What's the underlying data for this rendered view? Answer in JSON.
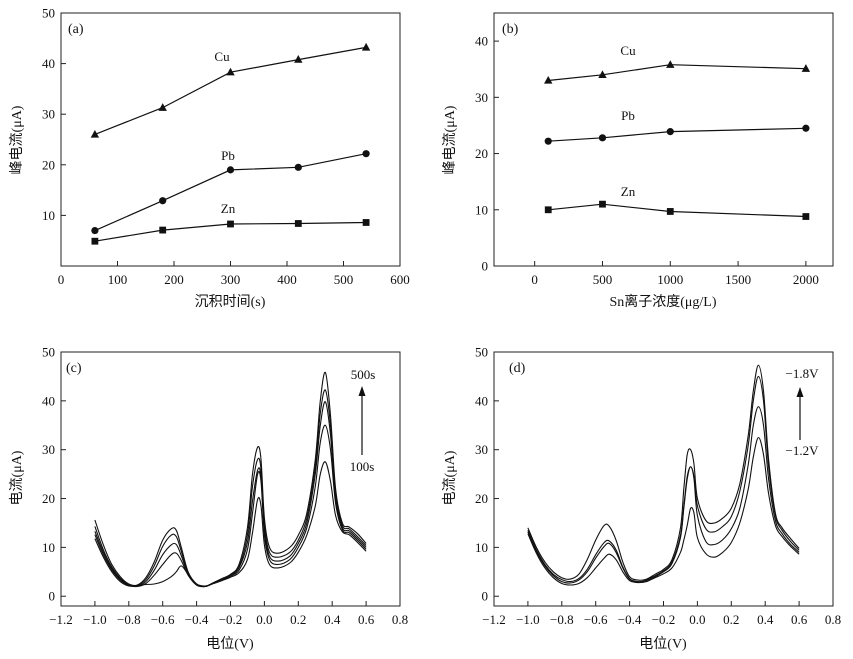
{
  "chart_data": [
    {
      "id": "a",
      "type": "line",
      "panel_label": "(a)",
      "xlabel": "沉积时间(s)",
      "ylabel": "峰电流(μA)",
      "xlim": [
        0,
        600
      ],
      "ylim": [
        0,
        50
      ],
      "x_ticks": [
        0,
        100,
        200,
        300,
        400,
        500,
        600
      ],
      "y_ticks": [
        10,
        20,
        30,
        40,
        50
      ],
      "series": [
        {
          "name": "Cu",
          "marker": "triangle",
          "x": [
            60,
            180,
            300,
            420,
            540
          ],
          "values": [
            26.0,
            31.3,
            38.3,
            40.8,
            43.2
          ]
        },
        {
          "name": "Pb",
          "marker": "circle",
          "x": [
            60,
            180,
            300,
            420,
            540
          ],
          "values": [
            7.0,
            12.9,
            19.0,
            19.5,
            22.2
          ]
        },
        {
          "name": "Zn",
          "marker": "square",
          "x": [
            60,
            180,
            300,
            420,
            540
          ],
          "values": [
            4.9,
            7.1,
            8.3,
            8.4,
            8.6
          ]
        }
      ]
    },
    {
      "id": "b",
      "type": "line",
      "panel_label": "(b)",
      "xlabel": "Sn离子浓度(μg/L)",
      "ylabel": "峰电流(μA)",
      "xlim": [
        -300,
        2200
      ],
      "ylim": [
        0,
        45
      ],
      "x_ticks": [
        0,
        500,
        1000,
        1500,
        2000
      ],
      "y_ticks": [
        0,
        10,
        20,
        30,
        40
      ],
      "series": [
        {
          "name": "Cu",
          "marker": "triangle",
          "x": [
            100,
            500,
            1000,
            2000
          ],
          "values": [
            33.0,
            34.0,
            35.8,
            35.1
          ]
        },
        {
          "name": "Pb",
          "marker": "circle",
          "x": [
            100,
            500,
            1000,
            2000
          ],
          "values": [
            22.2,
            22.8,
            23.9,
            24.5
          ]
        },
        {
          "name": "Zn",
          "marker": "square",
          "x": [
            100,
            500,
            1000,
            2000
          ],
          "values": [
            10.0,
            11.0,
            9.7,
            8.8
          ]
        }
      ]
    },
    {
      "id": "c",
      "type": "line",
      "panel_label": "(c)",
      "xlabel": "电位(V)",
      "ylabel": "电流(μA)",
      "xlim": [
        -1.2,
        0.8
      ],
      "ylim": [
        -2,
        50
      ],
      "x_ticks": [
        -1.2,
        -1.0,
        -0.8,
        -0.6,
        -0.4,
        -0.2,
        0.0,
        0.2,
        0.4,
        0.6,
        0.8
      ],
      "y_ticks": [
        0,
        10,
        20,
        30,
        40,
        50
      ],
      "annotations": {
        "top": "500s",
        "bottom": "100s"
      },
      "x": [
        -1.0,
        -0.95,
        -0.9,
        -0.85,
        -0.8,
        -0.75,
        -0.7,
        -0.65,
        -0.6,
        -0.55,
        -0.52,
        -0.49,
        -0.45,
        -0.4,
        -0.35,
        -0.3,
        -0.25,
        -0.2,
        -0.15,
        -0.1,
        -0.07,
        -0.04,
        -0.02,
        0.0,
        0.03,
        0.08,
        0.15,
        0.2,
        0.25,
        0.3,
        0.33,
        0.36,
        0.39,
        0.42,
        0.46,
        0.5,
        0.55,
        0.6
      ],
      "series": [
        {
          "values": [
            15.6,
            10.5,
            6.5,
            4.0,
            2.5,
            2.3,
            3.8,
            7.0,
            11.5,
            13.8,
            13.5,
            10.0,
            5.0,
            2.5,
            2.0,
            2.8,
            3.6,
            4.5,
            6.5,
            14.0,
            25.0,
            30.5,
            28.0,
            16.0,
            10.0,
            8.8,
            10.0,
            12.5,
            17.0,
            28.0,
            40.0,
            45.8,
            37.0,
            22.0,
            15.0,
            14.2,
            12.8,
            10.8
          ]
        },
        {
          "values": [
            14.3,
            9.5,
            6.0,
            3.7,
            2.4,
            2.2,
            3.4,
            6.2,
            10.2,
            12.5,
            12.2,
            9.2,
            4.7,
            2.4,
            2.0,
            2.8,
            3.6,
            4.4,
            6.0,
            12.5,
            22.5,
            28.0,
            26.0,
            14.5,
            9.0,
            8.0,
            9.0,
            11.5,
            16.0,
            26.5,
            37.5,
            42.2,
            35.0,
            21.0,
            14.5,
            13.8,
            12.2,
            10.4
          ]
        },
        {
          "values": [
            13.3,
            9.0,
            5.7,
            3.5,
            2.3,
            2.1,
            3.0,
            5.3,
            8.5,
            10.5,
            10.6,
            8.3,
            4.5,
            2.3,
            2.0,
            2.7,
            3.5,
            4.3,
            5.8,
            11.0,
            19.5,
            25.8,
            24.5,
            13.5,
            8.2,
            7.2,
            8.2,
            10.8,
            15.0,
            25.0,
            35.0,
            39.8,
            33.0,
            20.0,
            14.0,
            13.4,
            11.8,
            10.0
          ]
        },
        {
          "values": [
            12.6,
            8.5,
            5.4,
            3.3,
            2.2,
            2.0,
            2.6,
            4.3,
            6.5,
            8.5,
            8.8,
            7.3,
            4.3,
            2.3,
            2.0,
            2.6,
            3.3,
            4.1,
            5.3,
            9.5,
            17.0,
            25.0,
            23.5,
            12.5,
            7.5,
            6.5,
            7.5,
            10.0,
            14.0,
            22.5,
            31.5,
            35.0,
            30.0,
            19.0,
            13.6,
            13.0,
            11.4,
            9.6
          ]
        },
        {
          "values": [
            11.8,
            8.0,
            5.0,
            3.0,
            2.1,
            2.2,
            2.4,
            2.5,
            3.0,
            4.0,
            5.0,
            6.2,
            4.5,
            2.5,
            2.1,
            2.6,
            3.2,
            3.9,
            4.8,
            7.5,
            13.0,
            19.8,
            18.5,
            10.5,
            6.5,
            5.8,
            6.8,
            9.0,
            12.5,
            18.5,
            25.0,
            27.5,
            23.5,
            16.5,
            13.2,
            12.6,
            11.0,
            9.2
          ]
        }
      ]
    },
    {
      "id": "d",
      "type": "line",
      "panel_label": "(d)",
      "xlabel": "电位(V)",
      "ylabel": "电流(μA)",
      "xlim": [
        -1.2,
        0.8
      ],
      "ylim": [
        -2,
        50
      ],
      "x_ticks": [
        -1.2,
        -1.0,
        -0.8,
        -0.6,
        -0.4,
        -0.2,
        0.0,
        0.2,
        0.4,
        0.6,
        0.8
      ],
      "y_ticks": [
        0,
        10,
        20,
        30,
        40,
        50
      ],
      "annotations": {
        "top": "−1.8V",
        "bottom": "−1.2V"
      },
      "x": [
        -1.0,
        -0.95,
        -0.9,
        -0.85,
        -0.8,
        -0.75,
        -0.7,
        -0.65,
        -0.6,
        -0.55,
        -0.52,
        -0.48,
        -0.44,
        -0.4,
        -0.35,
        -0.3,
        -0.25,
        -0.2,
        -0.15,
        -0.1,
        -0.08,
        -0.06,
        -0.04,
        -0.02,
        0.0,
        0.05,
        0.1,
        0.15,
        0.2,
        0.25,
        0.3,
        0.33,
        0.36,
        0.39,
        0.42,
        0.46,
        0.5,
        0.55,
        0.6
      ],
      "series": [
        {
          "values": [
            14.0,
            10.0,
            7.0,
            5.0,
            3.8,
            3.5,
            4.5,
            7.5,
            11.5,
            14.5,
            14.3,
            11.5,
            7.0,
            4.0,
            3.3,
            3.5,
            4.5,
            5.5,
            7.5,
            14.0,
            22.0,
            29.0,
            30.0,
            27.0,
            20.0,
            15.5,
            15.0,
            16.0,
            18.0,
            23.0,
            33.0,
            42.0,
            47.3,
            42.0,
            28.0,
            17.0,
            14.0,
            11.8,
            9.8
          ]
        },
        {
          "values": [
            13.5,
            9.5,
            6.5,
            4.5,
            3.4,
            3.0,
            3.6,
            5.5,
            8.5,
            11.0,
            11.3,
            9.5,
            6.0,
            3.6,
            3.0,
            3.3,
            4.2,
            5.2,
            7.0,
            12.5,
            18.5,
            24.5,
            26.5,
            24.5,
            18.5,
            13.8,
            13.2,
            14.3,
            16.3,
            21.5,
            31.0,
            40.0,
            45.0,
            40.0,
            26.5,
            16.5,
            13.5,
            11.2,
            9.4
          ]
        },
        {
          "values": [
            13.2,
            9.2,
            6.2,
            4.2,
            3.0,
            2.7,
            3.3,
            5.0,
            7.8,
            10.2,
            10.8,
            9.0,
            5.8,
            3.5,
            2.9,
            3.2,
            4.0,
            5.0,
            6.7,
            12.0,
            18.0,
            24.0,
            26.5,
            24.0,
            16.5,
            11.2,
            10.6,
            11.6,
            13.8,
            18.0,
            27.0,
            35.0,
            38.8,
            35.0,
            24.0,
            15.5,
            12.8,
            10.6,
            9.0
          ]
        },
        {
          "values": [
            12.8,
            8.8,
            5.8,
            3.8,
            2.6,
            2.3,
            2.6,
            3.8,
            5.8,
            7.8,
            8.6,
            7.5,
            5.0,
            3.2,
            2.8,
            3.0,
            3.8,
            4.6,
            5.8,
            9.0,
            11.5,
            14.5,
            18.0,
            17.0,
            12.0,
            8.7,
            8.0,
            9.0,
            11.0,
            15.0,
            22.0,
            28.5,
            32.5,
            29.0,
            21.0,
            14.5,
            12.2,
            10.2,
            8.6
          ]
        }
      ]
    }
  ]
}
